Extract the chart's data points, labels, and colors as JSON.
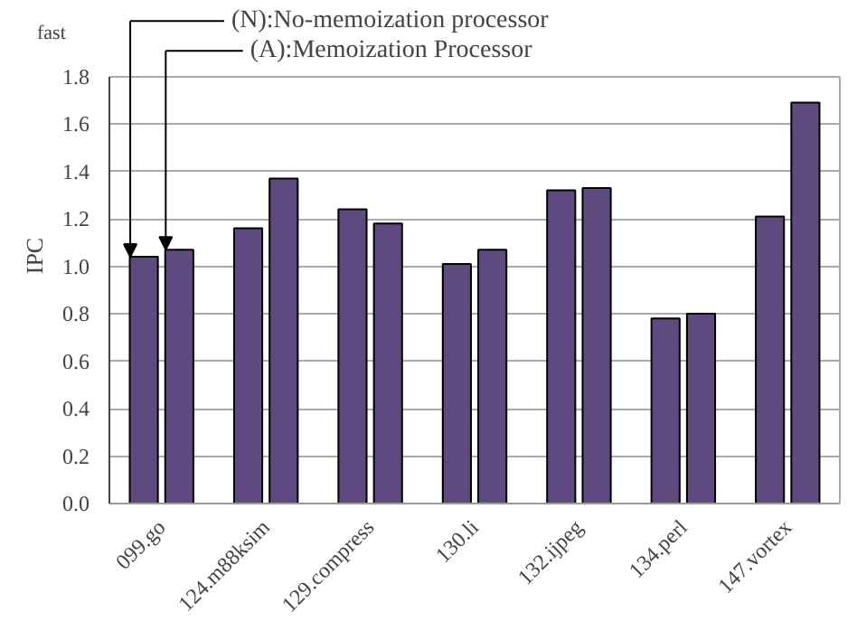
{
  "chart_data": {
    "type": "bar",
    "ylabel": "IPC",
    "annotations": [
      "fast"
    ],
    "categories": [
      "099.go",
      "124.m88ksim",
      "129.compress",
      "130.li",
      "132.ijpeg",
      "134.perl",
      "147.vortex"
    ],
    "series": [
      {
        "name": "(N):No-memoization processor",
        "color": "#5e4a7e",
        "values": [
          1.04,
          1.16,
          1.24,
          1.01,
          1.32,
          0.78,
          1.21
        ]
      },
      {
        "name": "(A):Memoization Processor",
        "color": "#5e4a7e",
        "values": [
          1.07,
          1.37,
          1.18,
          1.07,
          1.33,
          0.8,
          1.69
        ]
      }
    ],
    "ylim": [
      0,
      1.8
    ],
    "yticks": [
      {
        "value": 0,
        "label": "0.0"
      },
      {
        "value": 0.2,
        "label": "0.2"
      },
      {
        "value": 0.4,
        "label": "0.4"
      },
      {
        "value": 0.6,
        "label": "0.6"
      },
      {
        "value": 0.8,
        "label": "0.8"
      },
      {
        "value": 1,
        "label": "1.0"
      },
      {
        "value": 1.2,
        "label": "1.2"
      },
      {
        "value": 1.4,
        "label": "1.4"
      },
      {
        "value": 1.6,
        "label": "1.6"
      },
      {
        "value": 1.8,
        "label": "1.8"
      }
    ],
    "grid": "y",
    "legend": "top"
  }
}
